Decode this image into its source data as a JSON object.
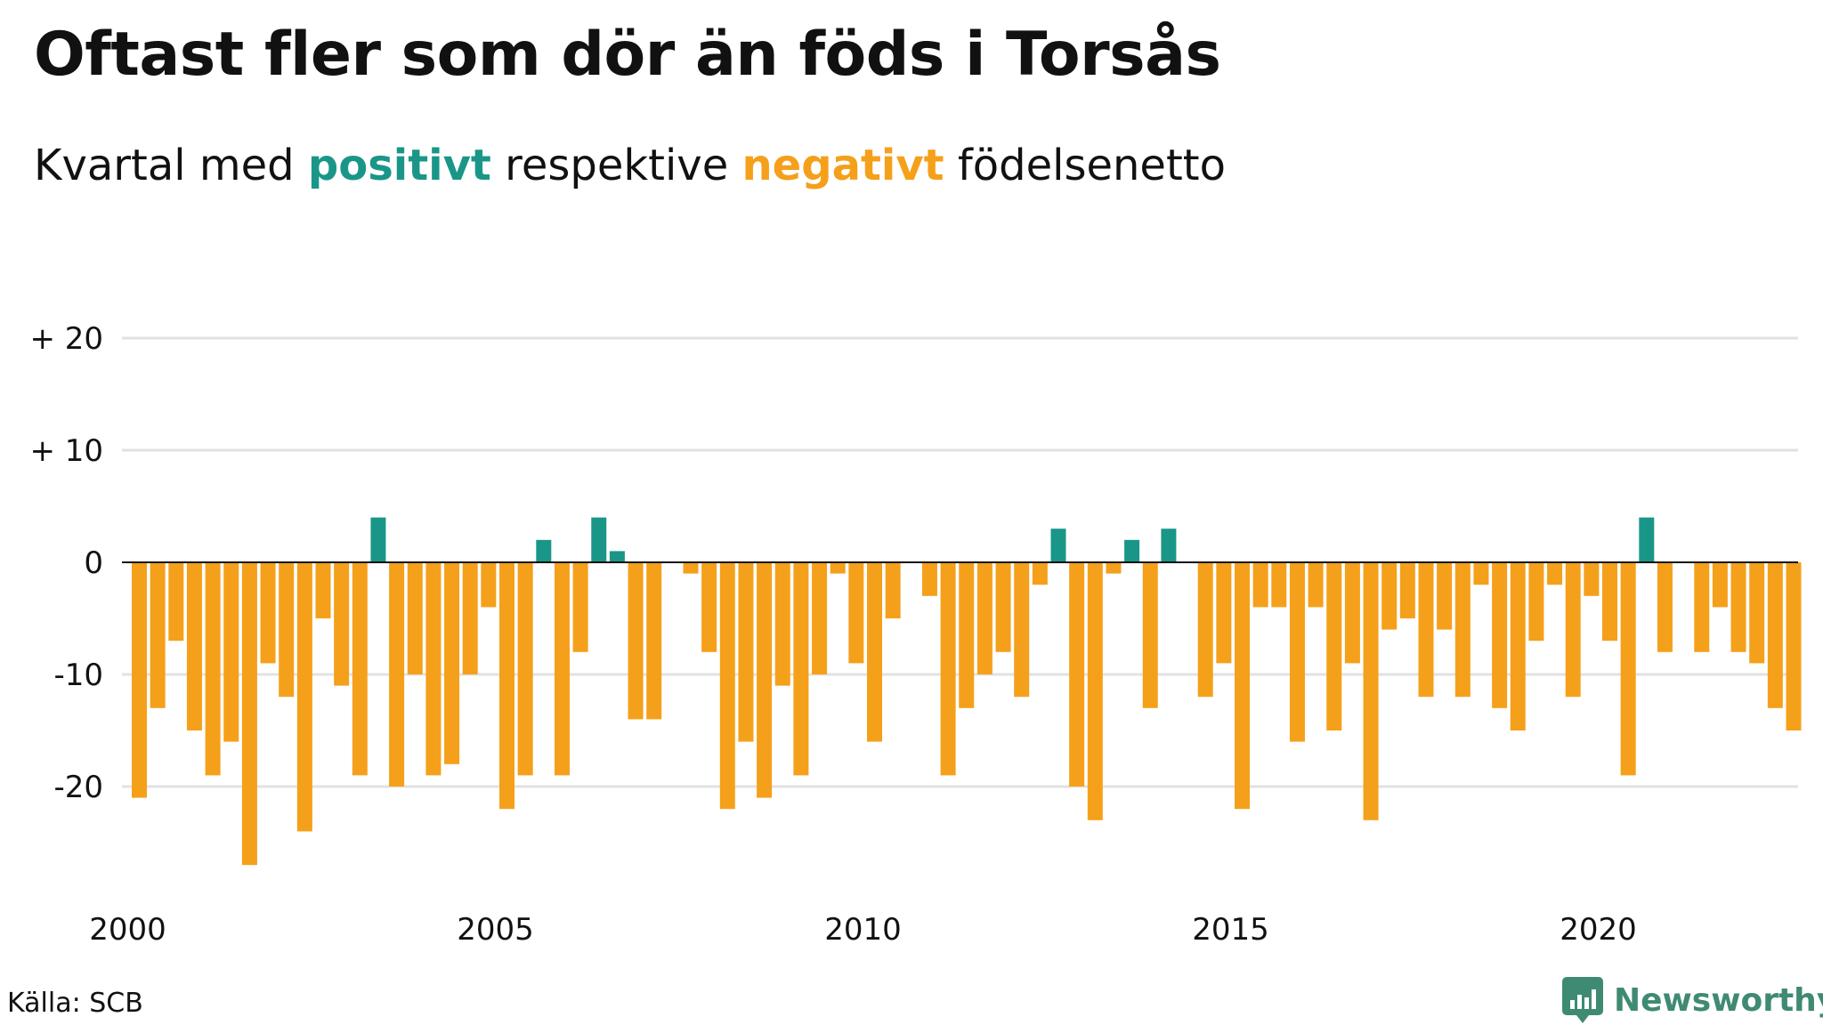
{
  "title": "Oftast fler som dör än föds i Torsås",
  "subtitle": {
    "prefix": "Kvartal med ",
    "positive_word": "positivt",
    "middle": " respektive ",
    "negative_word": "negativt",
    "suffix": " födelsenetto"
  },
  "source": "Källa: SCB",
  "brand": {
    "name": "Newsworthy",
    "color": "#3f8a73",
    "logo_icon": "bar-chart-badge-icon"
  },
  "colors": {
    "positive": "#1a9688",
    "negative": "#f5a01a",
    "grid": "#e2e2e2",
    "zero_line": "#111111"
  },
  "chart_data": {
    "type": "bar",
    "title": "Oftast fler som dör än föds i Torsås",
    "xlabel": "",
    "ylabel": "",
    "x_tick_labels": [
      "2000",
      "2005",
      "2010",
      "2015",
      "2020"
    ],
    "x_ticks": [
      2000,
      2005,
      2010,
      2015,
      2020
    ],
    "y_tick_labels": [
      "+ 20",
      "+ 10",
      "0",
      "-10",
      "-20"
    ],
    "y_ticks": [
      20,
      10,
      0,
      -10,
      -20
    ],
    "ylim": [
      -27,
      20
    ],
    "grid": true,
    "start_year": 2000,
    "periods_per_year": 4,
    "values": [
      -21,
      -13,
      -7,
      -15,
      -19,
      -16,
      -27,
      -9,
      -12,
      -24,
      -5,
      -11,
      -19,
      4,
      -20,
      -10,
      -19,
      -18,
      -10,
      -4,
      -22,
      -19,
      2,
      -19,
      -8,
      4,
      1,
      -14,
      -14,
      0,
      -1,
      -8,
      -22,
      -16,
      -21,
      -11,
      -19,
      -10,
      -1,
      -9,
      -16,
      -5,
      0,
      -3,
      -19,
      -13,
      -10,
      -8,
      -12,
      -2,
      3,
      -20,
      -23,
      -1,
      2,
      -13,
      3,
      0,
      -12,
      -9,
      -22,
      -4,
      -4,
      -16,
      -4,
      -15,
      -9,
      -23,
      -6,
      -5,
      -12,
      -6,
      -12,
      -2,
      -13,
      -15,
      -7,
      -2,
      -12,
      -3,
      -7,
      -19,
      4,
      -8,
      0,
      -8,
      -4,
      -8,
      -9,
      -13,
      -15
    ]
  }
}
